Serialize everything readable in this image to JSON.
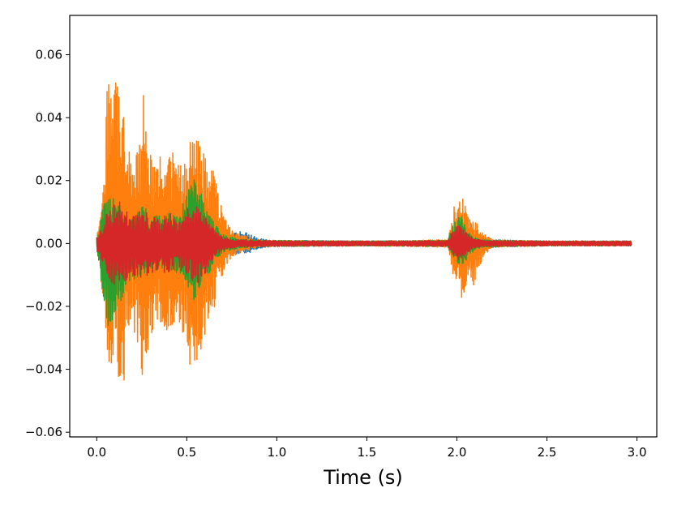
{
  "chart_data": {
    "type": "line",
    "title": "",
    "xlabel": "Time (s)",
    "ylabel": "",
    "xlim": [
      -0.15,
      3.11
    ],
    "ylim": [
      -0.0615,
      0.0725
    ],
    "grid": false,
    "legend": "none",
    "x_ticks": [
      0.0,
      0.5,
      1.0,
      1.5,
      2.0,
      2.5,
      3.0
    ],
    "x_tick_labels": [
      "0.0",
      "0.5",
      "1.0",
      "1.5",
      "2.0",
      "2.5",
      "3.0"
    ],
    "y_ticks": [
      -0.06,
      -0.04,
      -0.02,
      0.0,
      0.02,
      0.04,
      0.06
    ],
    "y_tick_labels": [
      "−0.06",
      "−0.04",
      "−0.02",
      "0.00",
      "0.02",
      "0.04",
      "0.06"
    ],
    "series": [
      {
        "color": "#1f77b4",
        "envelope": [
          [
            0.0,
            0.002,
            -0.002
          ],
          [
            0.05,
            0.012,
            -0.014
          ],
          [
            0.1,
            0.014,
            -0.015
          ],
          [
            0.15,
            0.013,
            -0.012
          ],
          [
            0.2,
            0.012,
            -0.011
          ],
          [
            0.25,
            0.014,
            -0.014
          ],
          [
            0.3,
            0.011,
            -0.012
          ],
          [
            0.35,
            0.009,
            -0.01
          ],
          [
            0.4,
            0.012,
            -0.011
          ],
          [
            0.45,
            0.01,
            -0.01
          ],
          [
            0.5,
            0.011,
            -0.012
          ],
          [
            0.55,
            0.014,
            -0.013
          ],
          [
            0.6,
            0.011,
            -0.012
          ],
          [
            0.65,
            0.007,
            -0.007
          ],
          [
            0.7,
            0.005,
            -0.005
          ],
          [
            0.75,
            0.003,
            -0.004
          ],
          [
            0.8,
            0.004,
            -0.003
          ],
          [
            0.85,
            0.003,
            -0.003
          ],
          [
            0.9,
            0.0015,
            -0.0015
          ],
          [
            1.0,
            0.001,
            -0.001
          ],
          [
            1.5,
            0.0008,
            -0.0008
          ],
          [
            1.95,
            0.001,
            -0.001
          ],
          [
            2.0,
            0.004,
            -0.005
          ],
          [
            2.05,
            0.004,
            -0.004
          ],
          [
            2.1,
            0.003,
            -0.003
          ],
          [
            2.15,
            0.002,
            -0.002
          ],
          [
            2.2,
            0.0012,
            -0.0012
          ],
          [
            2.5,
            0.0008,
            -0.0008
          ],
          [
            2.97,
            0.0008,
            -0.0008
          ]
        ]
      },
      {
        "color": "#ff7f0e",
        "envelope": [
          [
            0.0,
            0.002,
            -0.002
          ],
          [
            0.03,
            0.012,
            -0.016
          ],
          [
            0.06,
            0.064,
            -0.041
          ],
          [
            0.09,
            0.042,
            -0.038
          ],
          [
            0.11,
            0.066,
            -0.036
          ],
          [
            0.13,
            0.052,
            -0.054
          ],
          [
            0.16,
            0.038,
            -0.04
          ],
          [
            0.2,
            0.022,
            -0.026
          ],
          [
            0.24,
            0.036,
            -0.036
          ],
          [
            0.26,
            0.052,
            -0.05
          ],
          [
            0.28,
            0.04,
            -0.038
          ],
          [
            0.32,
            0.026,
            -0.026
          ],
          [
            0.36,
            0.028,
            -0.026
          ],
          [
            0.4,
            0.034,
            -0.028
          ],
          [
            0.44,
            0.026,
            -0.024
          ],
          [
            0.47,
            0.026,
            -0.028
          ],
          [
            0.5,
            0.031,
            -0.03
          ],
          [
            0.53,
            0.036,
            -0.046
          ],
          [
            0.56,
            0.034,
            -0.044
          ],
          [
            0.59,
            0.031,
            -0.036
          ],
          [
            0.62,
            0.022,
            -0.024
          ],
          [
            0.65,
            0.024,
            -0.022
          ],
          [
            0.68,
            0.014,
            -0.014
          ],
          [
            0.72,
            0.007,
            -0.007
          ],
          [
            0.76,
            0.004,
            -0.004
          ],
          [
            0.8,
            0.003,
            -0.003
          ],
          [
            0.85,
            0.002,
            -0.002
          ],
          [
            0.9,
            0.0012,
            -0.0012
          ],
          [
            1.0,
            0.001,
            -0.001
          ],
          [
            1.5,
            0.0008,
            -0.0008
          ],
          [
            1.95,
            0.0012,
            -0.0012
          ],
          [
            1.98,
            0.012,
            -0.011
          ],
          [
            2.01,
            0.014,
            -0.014
          ],
          [
            2.03,
            0.016,
            -0.019
          ],
          [
            2.06,
            0.01,
            -0.011
          ],
          [
            2.09,
            0.007,
            -0.014
          ],
          [
            2.12,
            0.006,
            -0.008
          ],
          [
            2.15,
            0.003,
            -0.005
          ],
          [
            2.2,
            0.0012,
            -0.0012
          ],
          [
            2.5,
            0.0008,
            -0.0008
          ],
          [
            2.97,
            0.0008,
            -0.0008
          ]
        ]
      },
      {
        "color": "#2ca02c",
        "envelope": [
          [
            0.0,
            0.002,
            -0.002
          ],
          [
            0.05,
            0.016,
            -0.024
          ],
          [
            0.07,
            0.014,
            -0.029
          ],
          [
            0.1,
            0.016,
            -0.022
          ],
          [
            0.13,
            0.012,
            -0.02
          ],
          [
            0.18,
            0.008,
            -0.012
          ],
          [
            0.22,
            0.01,
            -0.011
          ],
          [
            0.26,
            0.012,
            -0.012
          ],
          [
            0.3,
            0.009,
            -0.009
          ],
          [
            0.36,
            0.009,
            -0.008
          ],
          [
            0.42,
            0.01,
            -0.009
          ],
          [
            0.47,
            0.011,
            -0.01
          ],
          [
            0.51,
            0.018,
            -0.016
          ],
          [
            0.54,
            0.021,
            -0.018
          ],
          [
            0.58,
            0.016,
            -0.014
          ],
          [
            0.62,
            0.01,
            -0.01
          ],
          [
            0.66,
            0.006,
            -0.006
          ],
          [
            0.7,
            0.003,
            -0.003
          ],
          [
            0.75,
            0.002,
            -0.002
          ],
          [
            0.8,
            0.0015,
            -0.0015
          ],
          [
            0.9,
            0.001,
            -0.001
          ],
          [
            1.5,
            0.0008,
            -0.0008
          ],
          [
            1.95,
            0.001,
            -0.001
          ],
          [
            1.98,
            0.007,
            -0.005
          ],
          [
            2.02,
            0.009,
            -0.007
          ],
          [
            2.06,
            0.004,
            -0.005
          ],
          [
            2.1,
            0.002,
            -0.002
          ],
          [
            2.15,
            0.0012,
            -0.0012
          ],
          [
            2.5,
            0.0008,
            -0.0008
          ],
          [
            2.97,
            0.0008,
            -0.0008
          ]
        ]
      },
      {
        "color": "#d62728",
        "envelope": [
          [
            0.0,
            0.002,
            -0.002
          ],
          [
            0.03,
            0.005,
            -0.006
          ],
          [
            0.06,
            0.011,
            -0.012
          ],
          [
            0.09,
            0.012,
            -0.014
          ],
          [
            0.12,
            0.014,
            -0.013
          ],
          [
            0.16,
            0.011,
            -0.012
          ],
          [
            0.2,
            0.009,
            -0.01
          ],
          [
            0.25,
            0.011,
            -0.011
          ],
          [
            0.3,
            0.009,
            -0.01
          ],
          [
            0.36,
            0.008,
            -0.009
          ],
          [
            0.4,
            0.01,
            -0.01
          ],
          [
            0.45,
            0.008,
            -0.008
          ],
          [
            0.5,
            0.011,
            -0.011
          ],
          [
            0.54,
            0.013,
            -0.013
          ],
          [
            0.58,
            0.011,
            -0.012
          ],
          [
            0.62,
            0.007,
            -0.008
          ],
          [
            0.66,
            0.004,
            -0.004
          ],
          [
            0.7,
            0.002,
            -0.002
          ],
          [
            0.75,
            0.0015,
            -0.0015
          ],
          [
            0.8,
            0.0012,
            -0.0012
          ],
          [
            1.0,
            0.0009,
            -0.0009
          ],
          [
            1.5,
            0.0008,
            -0.0008
          ],
          [
            1.95,
            0.001,
            -0.001
          ],
          [
            1.98,
            0.005,
            -0.004
          ],
          [
            2.02,
            0.006,
            -0.006
          ],
          [
            2.06,
            0.003,
            -0.003
          ],
          [
            2.1,
            0.0015,
            -0.0015
          ],
          [
            2.15,
            0.001,
            -0.001
          ],
          [
            2.5,
            0.0008,
            -0.0008
          ],
          [
            2.97,
            0.0008,
            -0.0008
          ]
        ]
      }
    ]
  }
}
